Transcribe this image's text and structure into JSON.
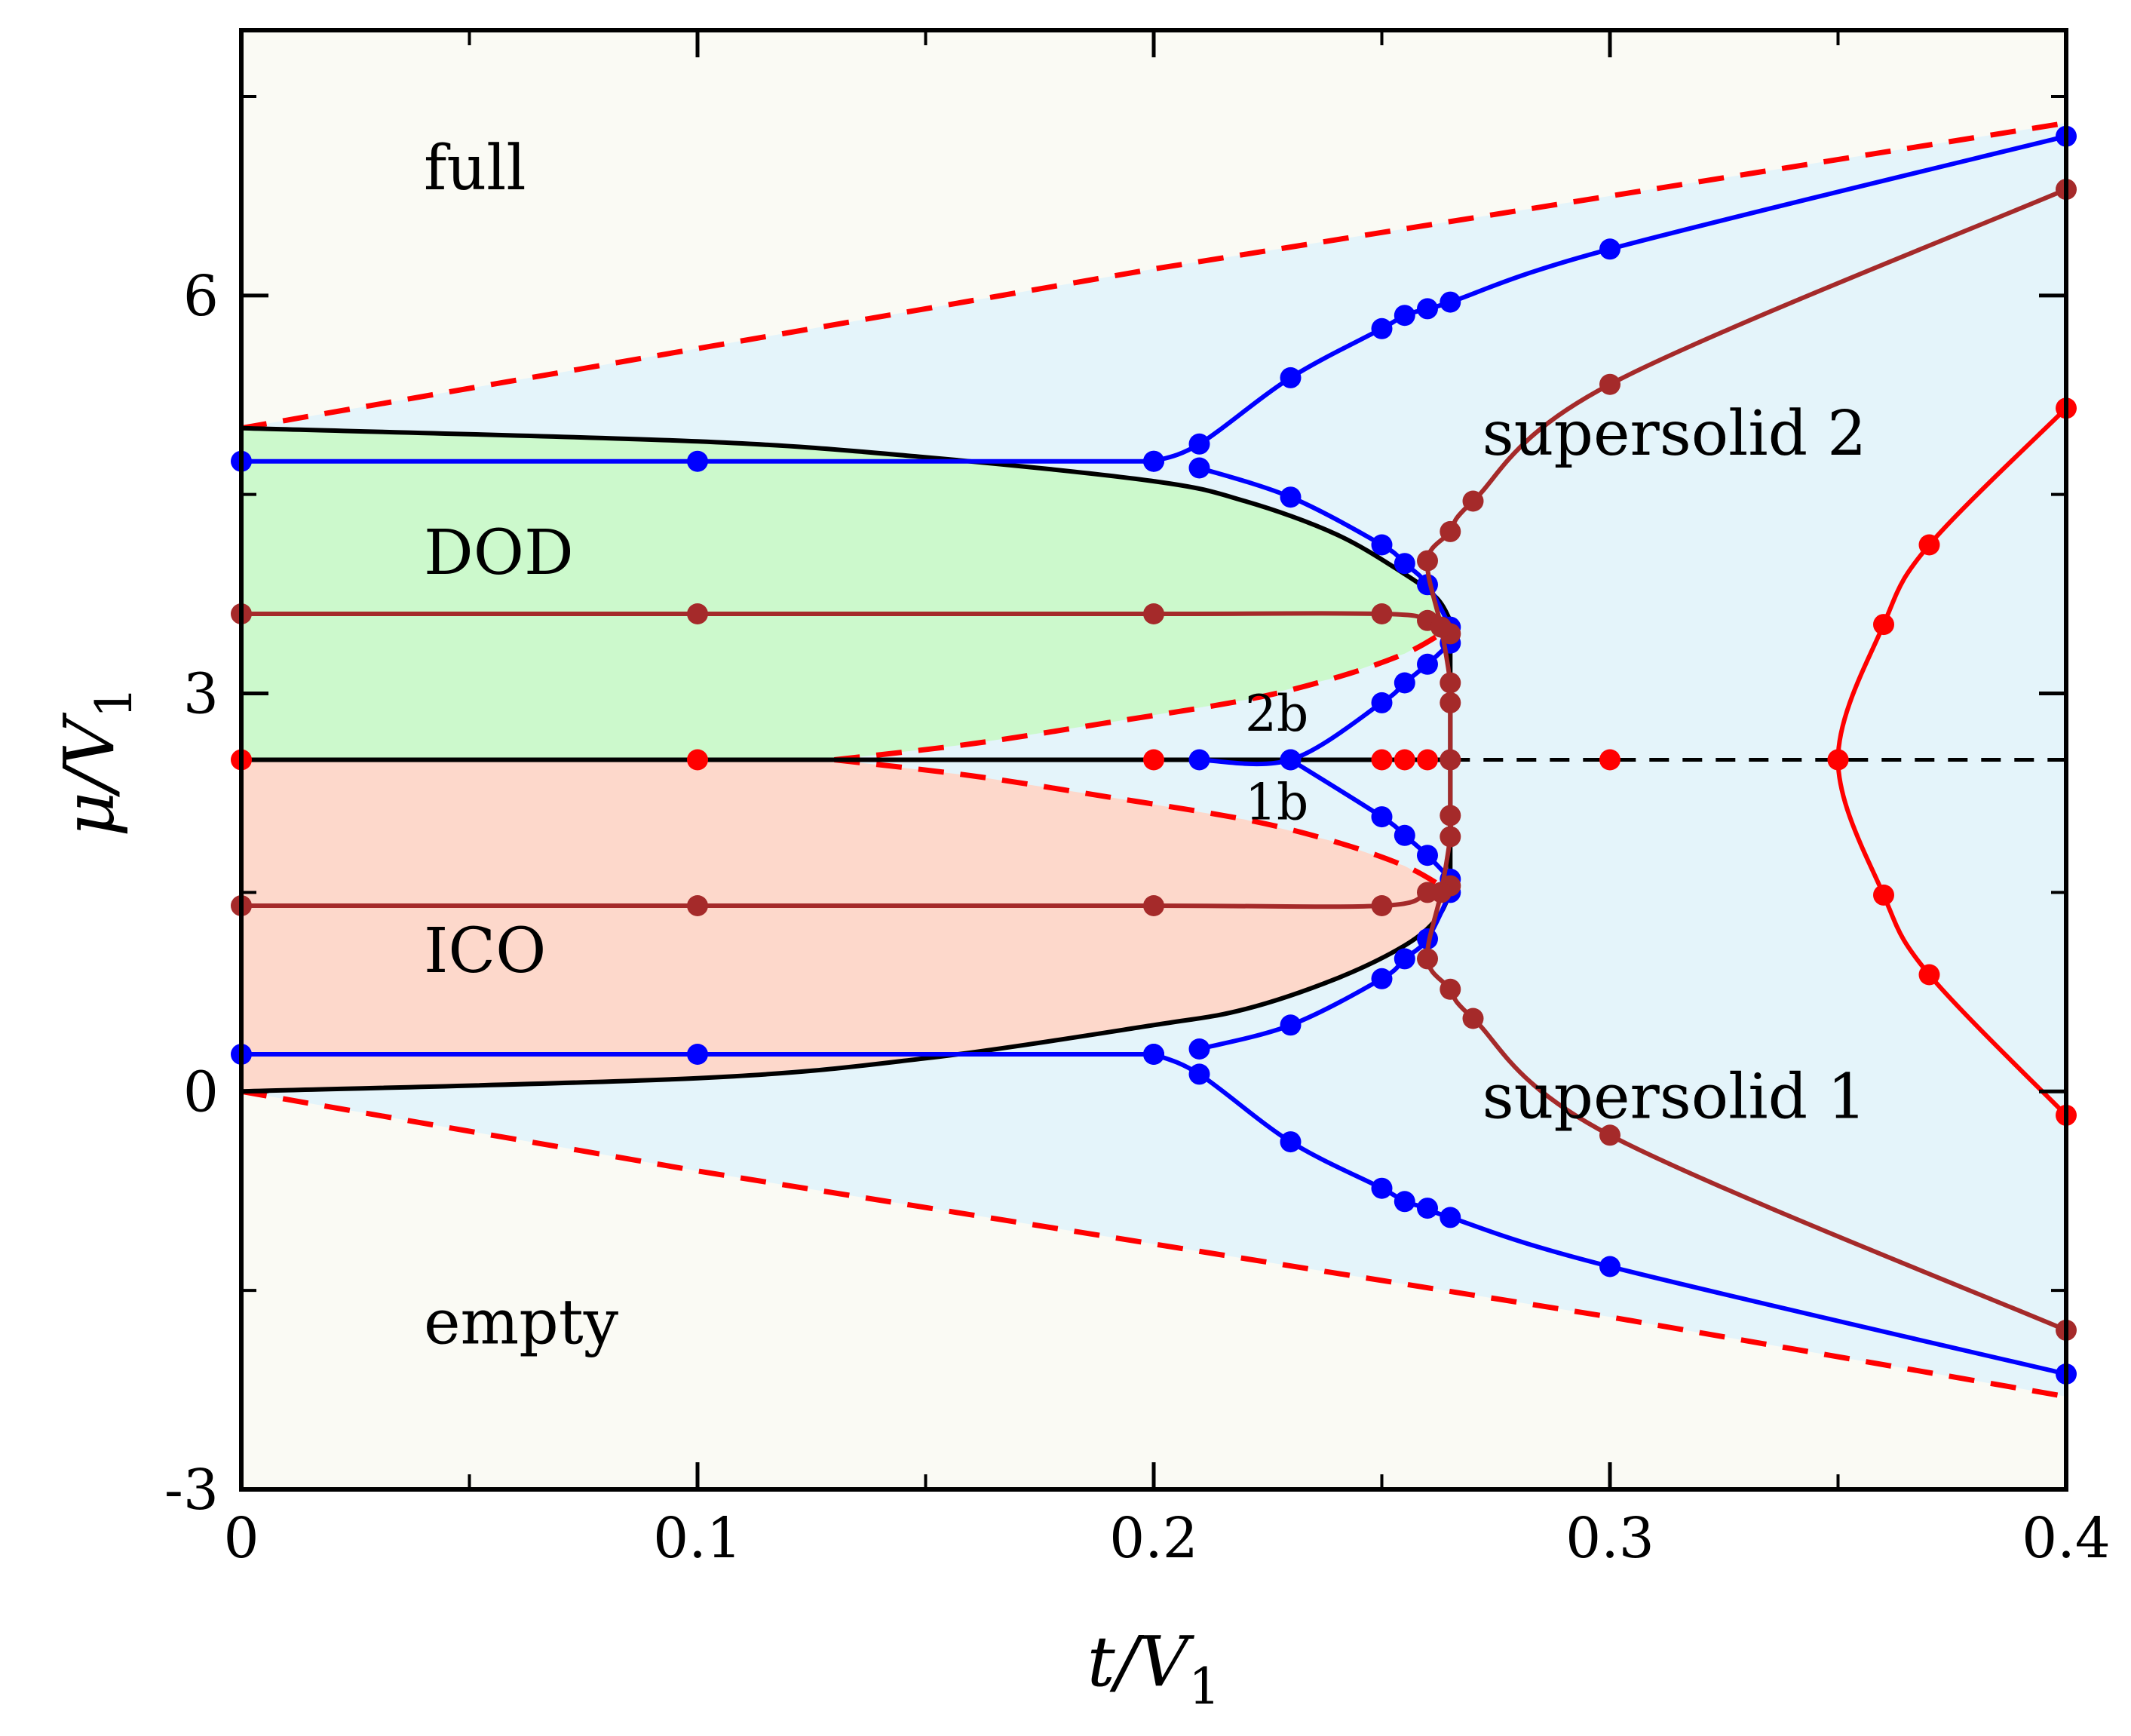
{
  "chart_data": {
    "type": "line",
    "title": "",
    "xlabel": "t/V",
    "xlabel_sub": "1",
    "ylabel": "μ/V",
    "ylabel_sub": "1",
    "xlim": [
      0,
      0.4
    ],
    "ylim": [
      -3,
      8
    ],
    "x_ticks": [
      0,
      0.1,
      0.2,
      0.3,
      0.4
    ],
    "x_tick_labels": [
      "0",
      "0.1",
      "0.2",
      "0.3",
      "0.4"
    ],
    "x_minor_ticks": [
      0.05,
      0.15,
      0.25,
      0.35
    ],
    "y_ticks": [
      -3,
      0,
      3,
      6
    ],
    "y_tick_labels": [
      "-3",
      "0",
      "3",
      "6"
    ],
    "y_minor_ticks": [
      -1.5,
      1.5,
      4.5,
      7.5
    ],
    "regions": [
      {
        "name": "full",
        "label": "full",
        "label_at": [
          0.04,
          6.8
        ],
        "color": "#fafaf4"
      },
      {
        "name": "empty",
        "label": "empty",
        "label_at": [
          0.04,
          -1.9
        ],
        "color": "#fafaf4"
      },
      {
        "name": "DOD",
        "label": "DOD",
        "label_at": [
          0.04,
          3.9
        ],
        "color": "#ccf9cc"
      },
      {
        "name": "ICO",
        "label": "ICO",
        "label_at": [
          0.04,
          0.9
        ],
        "color": "#fdd8cb"
      },
      {
        "name": "supersolid2",
        "label": "supersolid 2",
        "label_at": [
          0.272,
          4.8
        ],
        "color": "#e4f4fa"
      },
      {
        "name": "supersolid1",
        "label": "supersolid 1",
        "label_at": [
          0.272,
          -0.2
        ],
        "color": "#e4f4fa"
      }
    ],
    "annotations": [
      {
        "text": "2b",
        "at": [
          0.22,
          2.72
        ]
      },
      {
        "text": "1b",
        "at": [
          0.22,
          2.05
        ]
      }
    ],
    "boundaries": {
      "superfluid_upper_dashed": [
        [
          0,
          5.0
        ],
        [
          0.1,
          5.6
        ],
        [
          0.2,
          6.2
        ],
        [
          0.3,
          6.75
        ],
        [
          0.4,
          7.3
        ]
      ],
      "superfluid_lower_dashed": [
        [
          0,
          0.0
        ],
        [
          0.1,
          -0.6
        ],
        [
          0.2,
          -1.15
        ],
        [
          0.3,
          -1.7
        ],
        [
          0.4,
          -2.3
        ]
      ],
      "inner_upper_dashed": [
        [
          0.13,
          2.5
        ],
        [
          0.16,
          2.62
        ],
        [
          0.19,
          2.78
        ],
        [
          0.22,
          2.95
        ],
        [
          0.24,
          3.12
        ],
        [
          0.255,
          3.3
        ],
        [
          0.263,
          3.45
        ]
      ],
      "inner_lower_dashed": [
        [
          0.13,
          2.5
        ],
        [
          0.16,
          2.38
        ],
        [
          0.19,
          2.22
        ],
        [
          0.22,
          2.05
        ],
        [
          0.24,
          1.88
        ],
        [
          0.255,
          1.7
        ],
        [
          0.263,
          1.55
        ]
      ],
      "solid_upper_black": [
        [
          0,
          5.0
        ],
        [
          0.1,
          4.9
        ],
        [
          0.15,
          4.78
        ],
        [
          0.2,
          4.6
        ],
        [
          0.22,
          4.45
        ],
        [
          0.24,
          4.2
        ],
        [
          0.255,
          3.9
        ],
        [
          0.262,
          3.72
        ],
        [
          0.265,
          3.55
        ]
      ],
      "solid_lower_black": [
        [
          0,
          0.0
        ],
        [
          0.1,
          0.1
        ],
        [
          0.15,
          0.25
        ],
        [
          0.2,
          0.5
        ],
        [
          0.22,
          0.62
        ],
        [
          0.24,
          0.85
        ],
        [
          0.255,
          1.1
        ],
        [
          0.262,
          1.3
        ],
        [
          0.265,
          1.5
        ]
      ],
      "solid_vertical_black": [
        [
          0.265,
          3.55
        ],
        [
          0.265,
          1.5
        ]
      ],
      "half_filling_solid": [
        [
          0,
          2.5
        ],
        [
          0.265,
          2.5
        ]
      ],
      "half_filling_dashed": [
        [
          0.265,
          2.5
        ],
        [
          0.4,
          2.5
        ]
      ]
    },
    "series": [
      {
        "name": "blue-upper-flat",
        "color": "#0000ff",
        "points": [
          [
            0,
            4.75
          ],
          [
            0.1,
            4.75
          ],
          [
            0.2,
            4.75
          ]
        ]
      },
      {
        "name": "blue-upper-outer",
        "color": "#0000ff",
        "points": [
          [
            0.2,
            4.75
          ],
          [
            0.21,
            4.88
          ],
          [
            0.23,
            5.38
          ],
          [
            0.25,
            5.75
          ],
          [
            0.255,
            5.85
          ],
          [
            0.26,
            5.9
          ],
          [
            0.265,
            5.95
          ],
          [
            0.3,
            6.35
          ],
          [
            0.4,
            7.2
          ]
        ]
      },
      {
        "name": "blue-upper-inner",
        "color": "#0000ff",
        "points": [
          [
            0.21,
            4.7
          ],
          [
            0.23,
            4.48
          ],
          [
            0.25,
            4.12
          ],
          [
            0.255,
            3.98
          ],
          [
            0.26,
            3.82
          ],
          [
            0.265,
            3.5
          ]
        ]
      },
      {
        "name": "blue-2b",
        "color": "#0000ff",
        "points": [
          [
            0.21,
            2.5
          ],
          [
            0.23,
            2.5
          ],
          [
            0.25,
            2.93
          ],
          [
            0.255,
            3.08
          ],
          [
            0.26,
            3.22
          ],
          [
            0.265,
            3.38
          ]
        ]
      },
      {
        "name": "blue-1b",
        "color": "#0000ff",
        "points": [
          [
            0.23,
            2.5
          ],
          [
            0.25,
            2.07
          ],
          [
            0.255,
            1.93
          ],
          [
            0.26,
            1.78
          ],
          [
            0.265,
            1.6
          ]
        ]
      },
      {
        "name": "blue-lower-flat",
        "color": "#0000ff",
        "points": [
          [
            0,
            0.28
          ],
          [
            0.1,
            0.28
          ],
          [
            0.2,
            0.28
          ]
        ]
      },
      {
        "name": "blue-lower-inner",
        "color": "#0000ff",
        "points": [
          [
            0.21,
            0.32
          ],
          [
            0.23,
            0.5
          ],
          [
            0.25,
            0.85
          ],
          [
            0.255,
            1.0
          ],
          [
            0.26,
            1.15
          ],
          [
            0.265,
            1.5
          ]
        ]
      },
      {
        "name": "blue-lower-outer",
        "color": "#0000ff",
        "points": [
          [
            0.2,
            0.28
          ],
          [
            0.21,
            0.13
          ],
          [
            0.23,
            -0.38
          ],
          [
            0.25,
            -0.73
          ],
          [
            0.255,
            -0.83
          ],
          [
            0.26,
            -0.88
          ],
          [
            0.265,
            -0.95
          ],
          [
            0.3,
            -1.32
          ],
          [
            0.4,
            -2.13
          ]
        ]
      },
      {
        "name": "brown-flat-upper",
        "color": "#a52a2a",
        "points": [
          [
            0,
            3.6
          ],
          [
            0.1,
            3.6
          ],
          [
            0.2,
            3.6
          ],
          [
            0.25,
            3.6
          ],
          [
            0.26,
            3.55
          ],
          [
            0.265,
            3.45
          ]
        ]
      },
      {
        "name": "brown-flat-lower",
        "color": "#a52a2a",
        "points": [
          [
            0,
            1.4
          ],
          [
            0.1,
            1.4
          ],
          [
            0.2,
            1.4
          ],
          [
            0.25,
            1.4
          ],
          [
            0.26,
            1.5
          ],
          [
            0.265,
            1.55
          ]
        ]
      },
      {
        "name": "brown-upper-curve",
        "color": "#a52a2a",
        "points": [
          [
            0.265,
            2.5
          ],
          [
            0.265,
            2.93
          ],
          [
            0.265,
            3.08
          ],
          [
            0.263,
            3.5
          ],
          [
            0.26,
            4.0
          ],
          [
            0.265,
            4.22
          ],
          [
            0.27,
            4.45
          ],
          [
            0.3,
            5.33
          ],
          [
            0.4,
            6.8
          ]
        ]
      },
      {
        "name": "brown-lower-curve",
        "color": "#a52a2a",
        "points": [
          [
            0.265,
            2.5
          ],
          [
            0.265,
            2.08
          ],
          [
            0.265,
            1.92
          ],
          [
            0.263,
            1.5
          ],
          [
            0.26,
            1.0
          ],
          [
            0.265,
            0.77
          ],
          [
            0.27,
            0.55
          ],
          [
            0.3,
            -0.33
          ],
          [
            0.4,
            -1.8
          ]
        ]
      },
      {
        "name": "red-right-curve",
        "color": "#ff0000",
        "points": [
          [
            0.4,
            5.15
          ],
          [
            0.37,
            4.12
          ],
          [
            0.36,
            3.52
          ],
          [
            0.35,
            2.5
          ],
          [
            0.36,
            1.48
          ],
          [
            0.37,
            0.88
          ],
          [
            0.4,
            -0.18
          ]
        ]
      },
      {
        "name": "red-half-filling",
        "color": "#ff0000",
        "points": [
          [
            0,
            2.5
          ],
          [
            0.1,
            2.5
          ],
          [
            0.2,
            2.5
          ],
          [
            0.25,
            2.5
          ],
          [
            0.255,
            2.5
          ],
          [
            0.26,
            2.5
          ],
          [
            0.3,
            2.5
          ],
          [
            0.35,
            2.5
          ]
        ]
      }
    ]
  }
}
